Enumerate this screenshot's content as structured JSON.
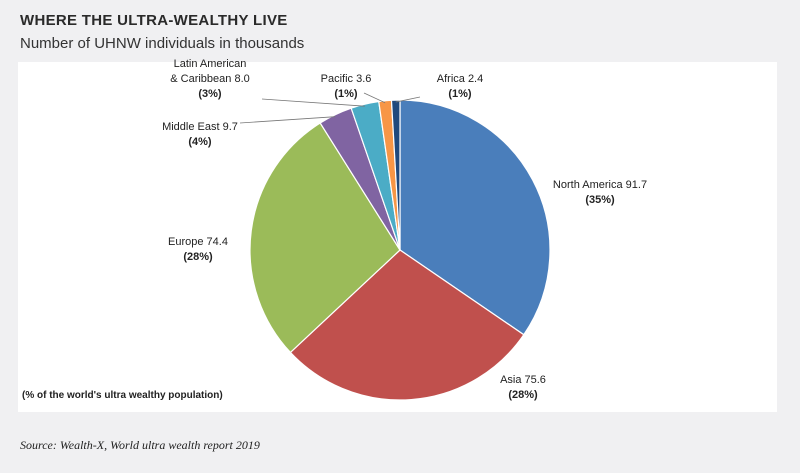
{
  "chart_data": {
    "type": "pie",
    "title": "WHERE THE ULTRA-WEALTHY LIVE",
    "subtitle": "Number of UHNW individuals in thousands",
    "slices": [
      {
        "name": "North America",
        "value": 91.7,
        "label": "North America 91.7",
        "pct": "(35%)",
        "color": "#4a7ebb"
      },
      {
        "name": "Asia",
        "value": 75.6,
        "label": "Asia 75.6",
        "pct": "(28%)",
        "color": "#c0504d"
      },
      {
        "name": "Europe",
        "value": 74.4,
        "label": "Europe 74.4",
        "pct": "(28%)",
        "color": "#9bbb59"
      },
      {
        "name": "Middle East",
        "value": 9.7,
        "label": "Middle East 9.7",
        "pct": "(4%)",
        "color": "#8064a2"
      },
      {
        "name": "Latin American & Caribbean",
        "value": 8.0,
        "label": [
          "Latin American",
          "& Caribbean 8.0"
        ],
        "pct": "(3%)",
        "color": "#4bacc6"
      },
      {
        "name": "Pacific",
        "value": 3.6,
        "label": "Pacific 3.6",
        "pct": "(1%)",
        "color": "#f79646"
      },
      {
        "name": "Africa",
        "value": 2.4,
        "label": "Africa 2.4",
        "pct": "(1%)",
        "color": "#1f497d"
      }
    ],
    "note": "(% of the world's ultra wealthy population)"
  },
  "source": "Source: Wealth-X, World ultra wealth report 2019"
}
